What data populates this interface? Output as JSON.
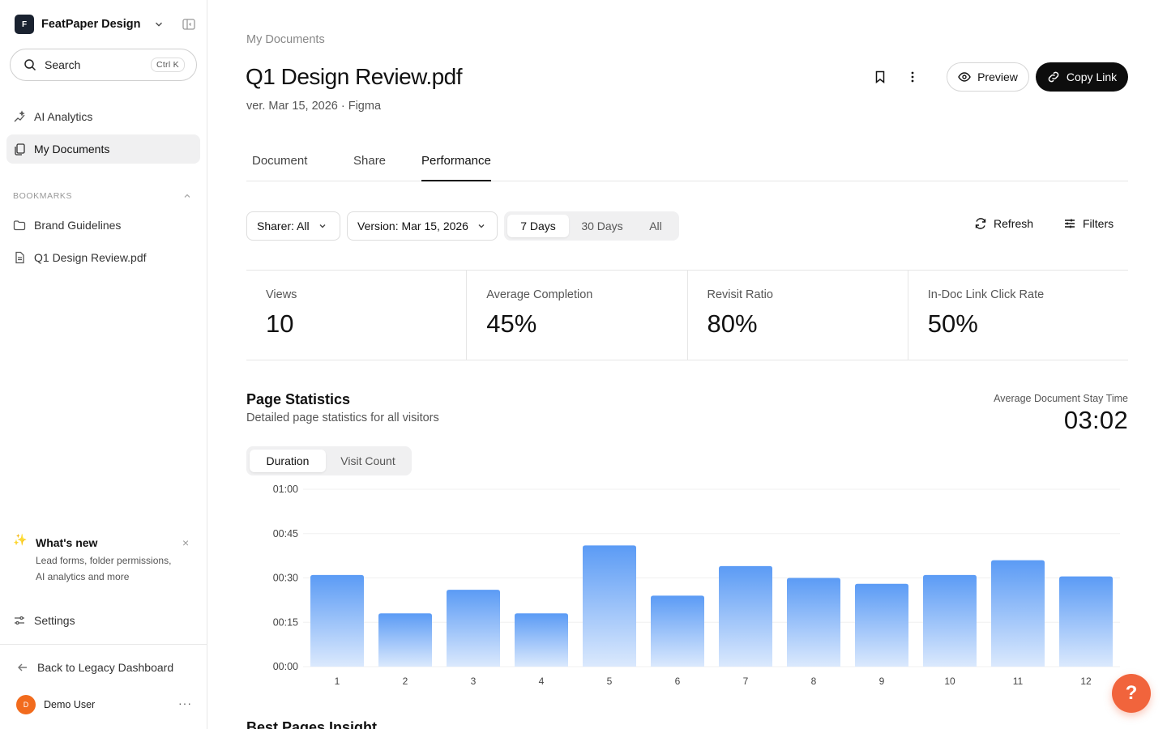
{
  "workspace": {
    "logo_letter": "F",
    "name": "FeatPaper Design"
  },
  "search": {
    "label": "Search",
    "shortcut": "Ctrl K"
  },
  "nav": [
    {
      "label": "AI Analytics",
      "icon": "sparkle-analytics-icon"
    },
    {
      "label": "My Documents",
      "icon": "documents-icon",
      "active": true
    }
  ],
  "bookmarks": {
    "label": "BOOKMARKS",
    "items": [
      {
        "label": "Brand Guidelines",
        "icon": "folder-icon"
      },
      {
        "label": "Q1 Design Review.pdf",
        "icon": "file-icon"
      }
    ]
  },
  "whats_new": {
    "title": "What's new",
    "body": "Lead forms, folder permissions, AI analytics and more"
  },
  "settings_label": "Settings",
  "back_label": "Back to Legacy Dashboard",
  "user": {
    "initial": "D",
    "name": "Demo User"
  },
  "header": {
    "breadcrumb": "My Documents",
    "title": "Q1 Design Review.pdf",
    "subtitle": "ver. Mar 15, 2026 · Figma",
    "preview_label": "Preview",
    "copy_label": "Copy Link"
  },
  "tabs": [
    {
      "label": "Document"
    },
    {
      "label": "Share"
    },
    {
      "label": "Performance",
      "active": true
    }
  ],
  "filters": {
    "sharer": "Sharer: All",
    "version": "Version: Mar 15, 2026",
    "ranges": [
      "7 Days",
      "30 Days",
      "All"
    ],
    "selected_range": "7 Days",
    "refresh_label": "Refresh",
    "filters_label": "Filters"
  },
  "stats": [
    {
      "label": "Views",
      "value": "10"
    },
    {
      "label": "Average Completion",
      "value": "45%"
    },
    {
      "label": "Revisit Ratio",
      "value": "80%"
    },
    {
      "label": "In-Doc Link Click Rate",
      "value": "50%"
    }
  ],
  "page_stats": {
    "title": "Page Statistics",
    "subtitle": "Detailed page statistics for all visitors",
    "avg_label": "Average Document Stay Time",
    "avg_value": "03:02",
    "toggle": [
      "Duration",
      "Visit Count"
    ],
    "toggle_selected": "Duration"
  },
  "chart_data": {
    "type": "bar",
    "categories": [
      "1",
      "2",
      "3",
      "4",
      "5",
      "6",
      "7",
      "8",
      "9",
      "10",
      "11",
      "12"
    ],
    "values": [
      31,
      18,
      26,
      18,
      41,
      24,
      34,
      30,
      28,
      31,
      36,
      30.5
    ],
    "ylim": [
      0,
      60
    ],
    "yticks": [
      0,
      15,
      30,
      45,
      60
    ],
    "ytick_labels": [
      "00:00",
      "00:15",
      "00:30",
      "00:45",
      "01:00"
    ],
    "ylabel_unit": "seconds",
    "bar_color_top": "#5b9bf5",
    "bar_color_bottom": "#dbe9fd",
    "grid": true
  },
  "next_section_title": "Best Pages Insight",
  "colors": {
    "accent_dark": "#0d0d0d",
    "help_button": "#f1643c",
    "avatar": "#f26b1d"
  }
}
